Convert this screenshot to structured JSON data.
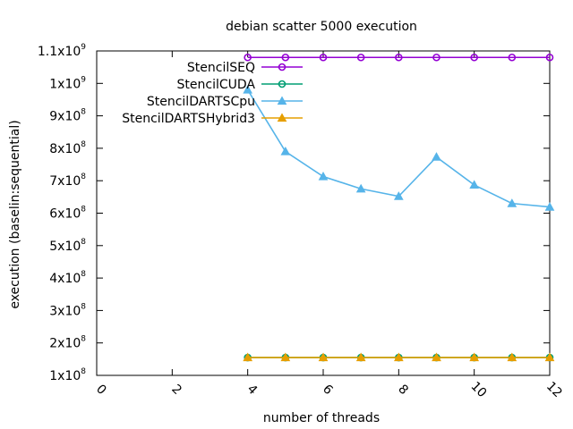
{
  "chart_data": {
    "type": "line",
    "title": "debian scatter 5000 execution",
    "xlabel": "number of threads",
    "ylabel": "execution (baselin:sequential)",
    "xlim": [
      0,
      12
    ],
    "ylim": [
      100000000,
      1100000000
    ],
    "x_ticks": [
      {
        "value": 0,
        "label": "0"
      },
      {
        "value": 2,
        "label": "2"
      },
      {
        "value": 4,
        "label": "4"
      },
      {
        "value": 6,
        "label": "6"
      },
      {
        "value": 8,
        "label": "8"
      },
      {
        "value": 10,
        "label": "10"
      },
      {
        "value": 12,
        "label": "12"
      }
    ],
    "y_ticks": [
      {
        "value": 100000000,
        "mantissa": "1x10",
        "exp": "8"
      },
      {
        "value": 200000000,
        "mantissa": "2x10",
        "exp": "8"
      },
      {
        "value": 300000000,
        "mantissa": "3x10",
        "exp": "8"
      },
      {
        "value": 400000000,
        "mantissa": "4x10",
        "exp": "8"
      },
      {
        "value": 500000000,
        "mantissa": "5x10",
        "exp": "8"
      },
      {
        "value": 600000000,
        "mantissa": "6x10",
        "exp": "8"
      },
      {
        "value": 700000000,
        "mantissa": "7x10",
        "exp": "8"
      },
      {
        "value": 800000000,
        "mantissa": "8x10",
        "exp": "8"
      },
      {
        "value": 900000000,
        "mantissa": "9x10",
        "exp": "8"
      },
      {
        "value": 1000000000,
        "mantissa": "1x10",
        "exp": "9"
      },
      {
        "value": 1100000000,
        "mantissa": "1.1x10",
        "exp": "9"
      }
    ],
    "grid": false,
    "legend_position": "top-left",
    "x": [
      4,
      5,
      6,
      7,
      8,
      9,
      10,
      11,
      12
    ],
    "series": [
      {
        "name": "StencilSEQ",
        "color": "#9400d3",
        "marker": "circle",
        "values": [
          1080000000,
          1080000000,
          1080000000,
          1080000000,
          1080000000,
          1080000000,
          1080000000,
          1080000000,
          1080000000
        ]
      },
      {
        "name": "StencilCUDA",
        "color": "#009e73",
        "marker": "circle",
        "values": [
          155000000,
          155000000,
          155000000,
          155000000,
          155000000,
          155000000,
          155000000,
          155000000,
          155000000
        ]
      },
      {
        "name": "StencilDARTSCpu",
        "color": "#56b4e9",
        "marker": "triangle",
        "values": [
          980000000,
          790000000,
          713000000,
          675000000,
          652000000,
          773000000,
          687000000,
          630000000,
          619000000
        ]
      },
      {
        "name": "StencilDARTSHybrid3",
        "color": "#e69f00",
        "marker": "triangle",
        "values": [
          155000000,
          155000000,
          155000000,
          155000000,
          155000000,
          155000000,
          155000000,
          155000000,
          155000000
        ]
      }
    ]
  }
}
